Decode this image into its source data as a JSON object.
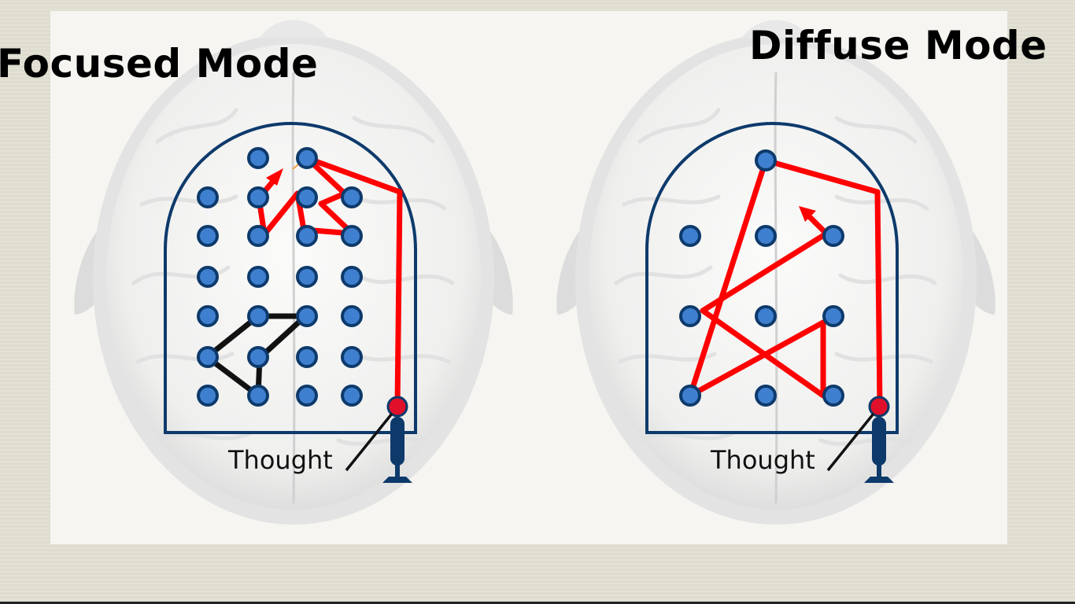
{
  "titles": {
    "focused": "Focused Mode",
    "diffuse": "Diffuse Mode"
  },
  "labels": {
    "focused_thought": "Thought",
    "diffuse_thought": "Thought"
  },
  "colors": {
    "background": "#e2e0d2",
    "panel": "#f6f5f1",
    "frame": "#0d3a6b",
    "node_fill": "#3f7fcf",
    "node_stroke": "#0d3a6b",
    "path_red": "#ff0000",
    "path_black": "#111111",
    "thought_marker": "#e0102a",
    "brain_tone": "#e6e6e6"
  },
  "icons": {
    "thought_device": "pinball-plunger-icon",
    "brain": "brain-outline-illustration"
  }
}
